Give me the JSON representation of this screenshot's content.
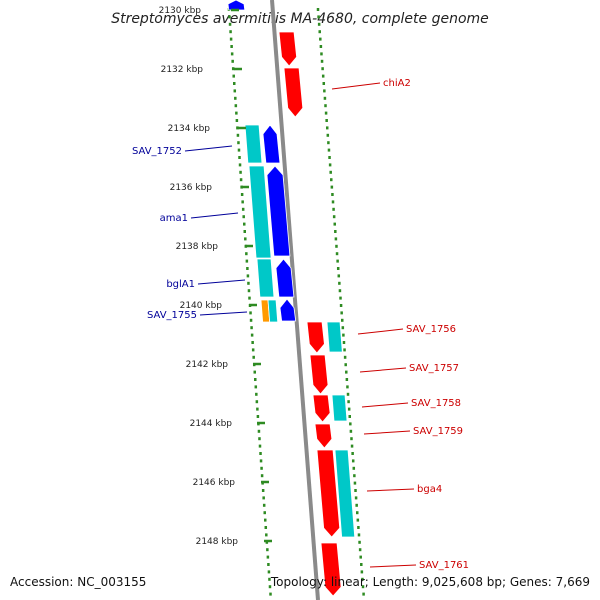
{
  "title": "Streptomyces avermitilis MA-4680, complete genome",
  "footer": {
    "accession": "Accession: NC_003155",
    "topology": "Topology: linear; Length: 9,025,608 bp; Genes: 7,669"
  },
  "axis": {
    "unit": "kbp",
    "ticks": [
      {
        "kbp": 2130,
        "label": "2130 kbp",
        "faded": true
      },
      {
        "kbp": 2132,
        "label": "2132 kbp"
      },
      {
        "kbp": 2134,
        "label": "2134 kbp"
      },
      {
        "kbp": 2136,
        "label": "2136 kbp"
      },
      {
        "kbp": 2138,
        "label": "2138 kbp"
      },
      {
        "kbp": 2140,
        "label": "2140 kbp"
      },
      {
        "kbp": 2142,
        "label": "2142 kbp"
      },
      {
        "kbp": 2144,
        "label": "2144 kbp"
      },
      {
        "kbp": 2146,
        "label": "2146 kbp"
      },
      {
        "kbp": 2148,
        "label": "2148 kbp"
      }
    ]
  },
  "colors": {
    "forward_gene": "#ff0000",
    "reverse_gene": "#0000ff",
    "cds_cyan": "#00c8c8",
    "orange_feature": "#ff9900",
    "forward_label": "#cc0000",
    "reverse_label": "#000099",
    "backbone": "#8a8a8a",
    "tick": "#2e8b22"
  },
  "genes": [
    {
      "label": "chiA2",
      "strand": "+"
    },
    {
      "label": "SAV_1752",
      "strand": "-"
    },
    {
      "label": "ama1",
      "strand": "-"
    },
    {
      "label": "bglA1",
      "strand": "-"
    },
    {
      "label": "SAV_1755",
      "strand": "-"
    },
    {
      "label": "SAV_1756",
      "strand": "+"
    },
    {
      "label": "SAV_1757",
      "strand": "+"
    },
    {
      "label": "SAV_1758",
      "strand": "+"
    },
    {
      "label": "SAV_1759",
      "strand": "+"
    },
    {
      "label": "bga4",
      "strand": "+"
    },
    {
      "label": "SAV_1761",
      "strand": "+"
    }
  ]
}
